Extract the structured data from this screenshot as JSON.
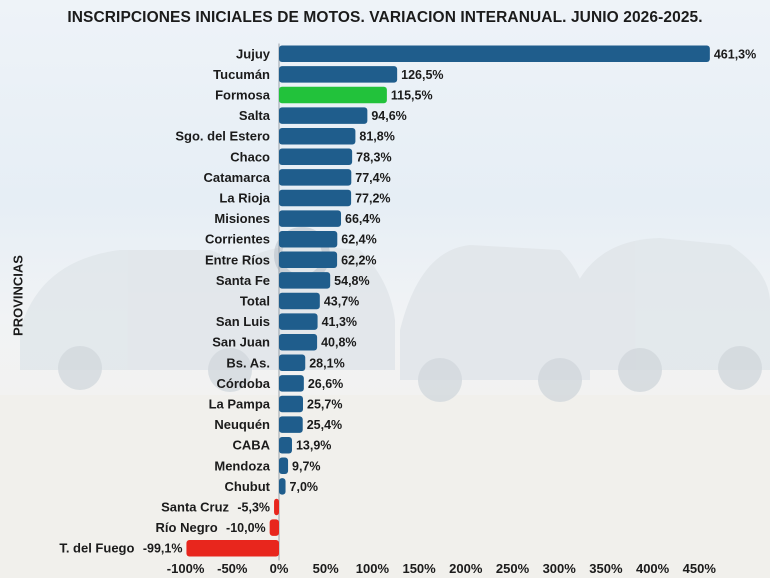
{
  "chart_data": {
    "type": "bar",
    "orientation": "horizontal",
    "title": "INSCRIPCIONES INICIALES DE MOTOS. VARIACION INTERANUAL. JUNIO 2026-2025.",
    "ylabel": "PROVINCIAS",
    "xlabel": "",
    "xlim": [
      -100,
      450
    ],
    "x_ticks": [
      "-100%",
      "-50%",
      "0%",
      "50%",
      "100%",
      "150%",
      "200%",
      "250%",
      "300%",
      "350%",
      "400%",
      "450%"
    ],
    "x_tick_values": [
      -100,
      -50,
      0,
      50,
      100,
      150,
      200,
      250,
      300,
      350,
      400,
      450
    ],
    "grid": false,
    "colors": {
      "positive": "#1f5d8c",
      "highlight": "#22c23b",
      "negative": "#e8261d"
    },
    "categories": [
      "Jujuy",
      "Tucumán",
      "Formosa",
      "Salta",
      "Sgo. del Estero",
      "Chaco",
      "Catamarca",
      "La Rioja",
      "Misiones",
      "Corrientes",
      "Entre Ríos",
      "Santa Fe",
      "Total",
      "San Luis",
      "San Juan",
      "Bs. As.",
      "Córdoba",
      "La Pampa",
      "Neuquén",
      "CABA",
      "Mendoza",
      "Chubut",
      "Santa Cruz",
      "Río Negro",
      "T. del Fuego"
    ],
    "values": [
      461.3,
      126.5,
      115.5,
      94.6,
      81.8,
      78.3,
      77.4,
      77.2,
      66.4,
      62.4,
      62.2,
      54.8,
      43.7,
      41.3,
      40.8,
      28.1,
      26.6,
      25.7,
      25.4,
      13.9,
      9.7,
      7.0,
      -5.3,
      -10.0,
      -99.1
    ],
    "labels": [
      "461,3%",
      "126,5%",
      "115,5%",
      "94,6%",
      "81,8%",
      "78,3%",
      "77,4%",
      "77,2%",
      "66,4%",
      "62,4%",
      "62,2%",
      "54,8%",
      "43,7%",
      "41,3%",
      "40,8%",
      "28,1%",
      "26,6%",
      "25,7%",
      "25,4%",
      "13,9%",
      "9,7%",
      "7,0%",
      "-5,3%",
      "-10,0%",
      "-99,1%"
    ],
    "highlight_category": "Formosa"
  }
}
